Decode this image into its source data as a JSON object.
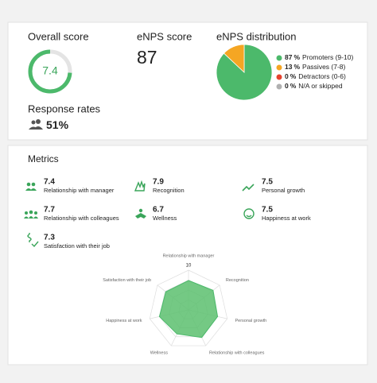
{
  "overall": {
    "title": "Overall score",
    "value": 7.4
  },
  "enps": {
    "title": "eNPS score",
    "value": 87
  },
  "distribution": {
    "title": "eNPS distribution",
    "unit": "%",
    "items": [
      {
        "value": 87,
        "label": "Promoters (9-10)",
        "color": "#4cb96b"
      },
      {
        "value": 13,
        "label": "Passives (7-8)",
        "color": "#f5a623"
      },
      {
        "value": 0,
        "label": "Detractors (0-6)",
        "color": "#e5432e"
      },
      {
        "value": 0,
        "label": "N/A or skipped",
        "color": "#b0b0b0"
      }
    ]
  },
  "response": {
    "title": "Response rates",
    "value": 51,
    "unit": "%"
  },
  "metrics": {
    "title": "Metrics",
    "items": [
      {
        "name": "Relationship with manager",
        "value": 7.4
      },
      {
        "name": "Recognition",
        "value": 7.9
      },
      {
        "name": "Personal growth",
        "value": 7.5
      },
      {
        "name": "Relationship with colleagues",
        "value": 7.7
      },
      {
        "name": "Wellness",
        "value": 6.7
      },
      {
        "name": "Happiness at work",
        "value": 7.5
      },
      {
        "name": "Satisfaction with their job",
        "value": 7.3
      }
    ]
  },
  "radar": {
    "max": 10
  }
}
